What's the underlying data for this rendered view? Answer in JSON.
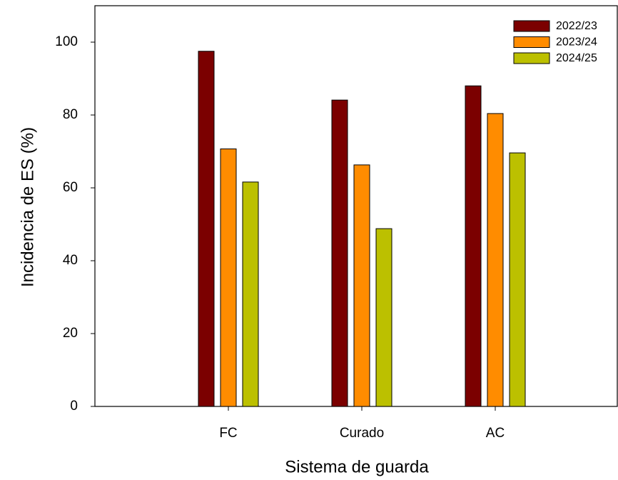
{
  "chart_data": {
    "type": "bar",
    "x_label": "Sistema de guarda",
    "y_label": "Incidencia de ES (%)",
    "categories": [
      "FC",
      "Curado",
      "AC"
    ],
    "series": [
      {
        "name": "2022/23",
        "color": "#7b0000",
        "values": [
          97.5,
          84.1,
          88.0
        ]
      },
      {
        "name": "2023/24",
        "color": "#ff8c00",
        "values": [
          70.7,
          66.3,
          80.4
        ]
      },
      {
        "name": "2024/25",
        "color": "#bcc000",
        "values": [
          61.6,
          48.8,
          69.6
        ]
      }
    ],
    "ylim": [
      0,
      110
    ],
    "yticks": [
      0,
      20,
      40,
      60,
      80,
      100
    ],
    "grid": false,
    "legend": "upper right"
  }
}
